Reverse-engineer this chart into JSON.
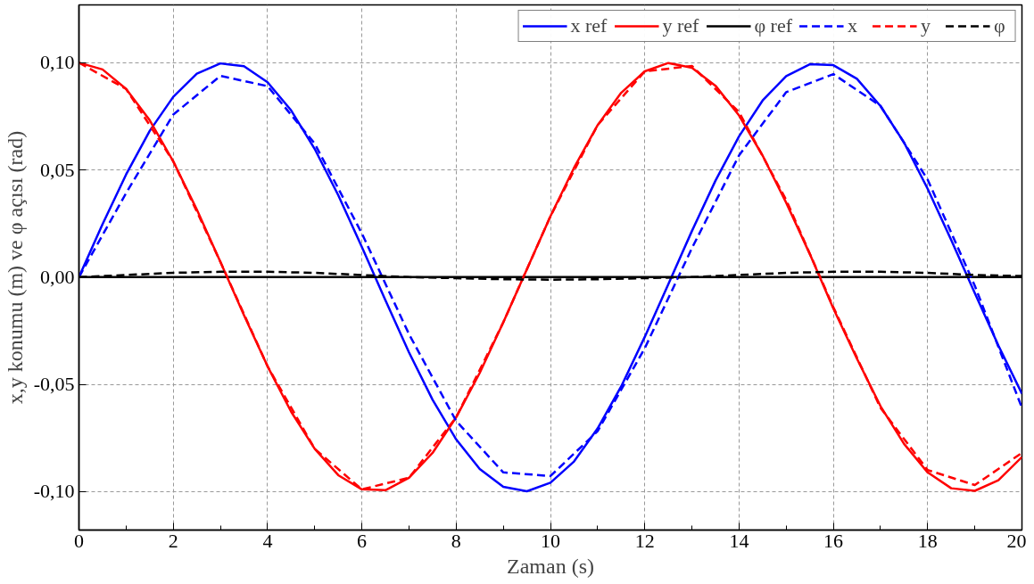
{
  "chart_data": {
    "type": "line",
    "xlabel": "Zaman (s)",
    "ylabel": "x,y konumu (m) ve φ açısı (rad)",
    "xlim": [
      0,
      20
    ],
    "ylim": [
      -0.118,
      0.127
    ],
    "xticks": [
      0,
      {
        "value": 1,
        "label": null
      },
      2,
      {
        "value": 3,
        "label": null
      },
      4,
      {
        "value": 5,
        "label": null
      },
      6,
      {
        "value": 7,
        "label": null
      },
      8,
      {
        "value": 9,
        "label": null
      },
      10,
      {
        "value": 11,
        "label": null
      },
      12,
      {
        "value": 13,
        "label": null
      },
      14,
      {
        "value": 15,
        "label": null
      },
      16,
      {
        "value": 17,
        "label": null
      },
      18,
      {
        "value": 19,
        "label": null
      },
      20
    ],
    "yticks": [
      {
        "value": -0.1,
        "label": "-0,10"
      },
      {
        "value": -0.05,
        "label": "-0,05"
      },
      {
        "value": 0,
        "label": "0,00"
      },
      {
        "value": 0.05,
        "label": "0,05"
      },
      {
        "value": 0.1,
        "label": "0,10"
      }
    ],
    "grid": true,
    "legend": "top right",
    "line_style": "solid",
    "marker": "none",
    "x": [
      0,
      0.5,
      1,
      1.5,
      2,
      2.5,
      3,
      3.5,
      4,
      4.5,
      5,
      5.5,
      6,
      6.5,
      7,
      7.5,
      8,
      8.5,
      9,
      9.5,
      10,
      10.5,
      11,
      11.5,
      12,
      12.5,
      13,
      13.5,
      14,
      14.5,
      15,
      15.5,
      16,
      16.5,
      17,
      17.5,
      18,
      18.5,
      19,
      19.5,
      20
    ],
    "series": [
      {
        "name": "x ref",
        "color": "#0000ff",
        "values": [
          0,
          0.0247,
          0.0479,
          0.0682,
          0.0841,
          0.0949,
          0.0997,
          0.0984,
          0.0909,
          0.0778,
          0.0598,
          0.0382,
          0.0141,
          -0.0108,
          -0.0351,
          -0.0572,
          -0.0757,
          -0.0895,
          -0.0978,
          -0.0999,
          -0.0959,
          -0.086,
          -0.0706,
          -0.051,
          -0.0279,
          -0.0033,
          0.0215,
          0.045,
          0.0657,
          0.0824,
          0.0938,
          0.0993,
          0.0989,
          0.0925,
          0.0798,
          0.0628,
          0.0412,
          0.0173,
          -0.0075,
          -0.0319,
          -0.0544
        ]
      },
      {
        "name": "y ref",
        "color": "#ff0000",
        "values": [
          0.1,
          0.0969,
          0.0878,
          0.0732,
          0.054,
          0.0315,
          0.0071,
          -0.0178,
          -0.0416,
          -0.0628,
          -0.0801,
          -0.0924,
          -0.099,
          -0.0994,
          -0.0936,
          -0.082,
          -0.0654,
          -0.0447,
          -0.0211,
          0.0037,
          0.0284,
          0.051,
          0.0709,
          0.086,
          0.096,
          0.0999,
          0.0977,
          0.0893,
          0.0754,
          0.0567,
          0.0347,
          0.0108,
          -0.0146,
          -0.038,
          -0.0602,
          -0.0778,
          -0.0911,
          -0.0985,
          -0.0997,
          -0.0948,
          -0.0839
        ]
      },
      {
        "name": "φ ref",
        "color": "#000000",
        "values": [
          0,
          0,
          0,
          0,
          0,
          0,
          0,
          0,
          0,
          0,
          0,
          0,
          0,
          0,
          0,
          0,
          0,
          0,
          0,
          0,
          0,
          0,
          0,
          0,
          0,
          0,
          0,
          0,
          0,
          0,
          0,
          0,
          0,
          0,
          0,
          0,
          0,
          0,
          0,
          0,
          0
        ]
      },
      {
        "name": "x",
        "color": "#0000ff",
        "line_style": "dashed",
        "x": [
          0,
          1,
          2,
          3,
          4,
          5,
          6,
          7,
          8,
          9,
          10,
          11,
          12,
          13,
          14,
          15,
          16,
          17,
          18,
          19,
          20
        ],
        "values": [
          0,
          0.0392,
          0.0758,
          0.0939,
          0.0891,
          0.0623,
          0.0204,
          -0.0266,
          -0.0671,
          -0.0911,
          -0.0928,
          -0.0719,
          -0.0332,
          0.0135,
          0.0568,
          0.0863,
          0.0947,
          0.0799,
          0.0455,
          -0.004,
          -0.061
        ]
      },
      {
        "name": "y",
        "color": "#ff0000",
        "line_style": "dashed",
        "x": [
          0,
          1,
          2,
          3,
          4,
          5,
          6,
          7,
          8,
          9,
          10,
          11,
          12,
          13,
          14,
          15,
          16,
          17,
          18,
          19,
          20
        ],
        "values": [
          0.1,
          0.0878,
          0.054,
          0.0071,
          -0.0416,
          -0.0801,
          -0.099,
          -0.0936,
          -0.0654,
          -0.0211,
          0.0284,
          0.0709,
          0.096,
          0.0985,
          0.077,
          0.036,
          -0.014,
          -0.061,
          -0.09,
          -0.097,
          -0.082
        ]
      },
      {
        "name": "φ",
        "color": "#000000",
        "line_style": "dashed",
        "x": [
          0,
          1,
          2,
          3,
          4,
          5,
          6,
          7,
          8,
          9,
          10,
          11,
          12,
          13,
          14,
          15,
          16,
          17,
          18,
          19,
          20
        ],
        "values": [
          0,
          0.001,
          0.002,
          0.0025,
          0.0025,
          0.002,
          0.001,
          0,
          -0.0005,
          -0.001,
          -0.0012,
          -0.001,
          -0.0005,
          0,
          0.001,
          0.002,
          0.0025,
          0.0025,
          0.002,
          0.001,
          0.0005
        ]
      }
    ]
  }
}
